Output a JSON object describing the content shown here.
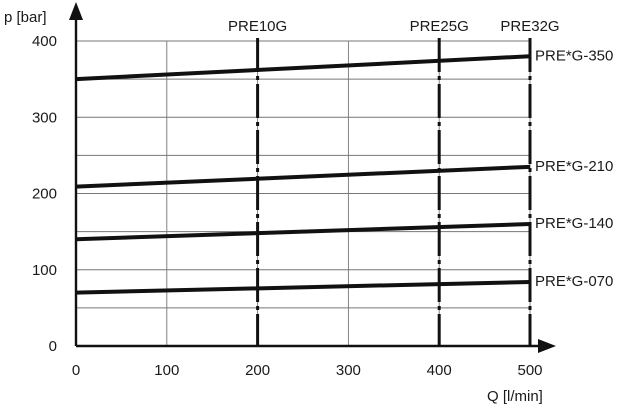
{
  "chart_data": {
    "type": "line",
    "x_axis": {
      "label": "Q [l/min]",
      "range": [
        0,
        500
      ],
      "ticks": [
        "0",
        "100",
        "200",
        "300",
        "400",
        "500"
      ]
    },
    "y_axis": {
      "label": "p [bar]",
      "range": [
        0,
        400
      ],
      "ticks": [
        "0",
        "100",
        "200",
        "300",
        "400"
      ]
    },
    "grid": true,
    "x_grid_values": [
      0,
      100,
      200,
      300,
      400,
      500
    ],
    "y_grid_values": [
      0,
      50,
      100,
      150,
      200,
      250,
      300,
      350,
      400
    ],
    "series": [
      {
        "name": "PRE*G-350",
        "x": [
          0,
          500
        ],
        "y": [
          350,
          380
        ]
      },
      {
        "name": "PRE*G-210",
        "x": [
          0,
          500
        ],
        "y": [
          209,
          235
        ]
      },
      {
        "name": "PRE*G-140",
        "x": [
          0,
          500
        ],
        "y": [
          140,
          160
        ]
      },
      {
        "name": "PRE*G-070",
        "x": [
          0,
          500
        ],
        "y": [
          70,
          84
        ]
      }
    ],
    "vertical_markers": [
      {
        "label": "PRE10G",
        "x": 200
      },
      {
        "label": "PRE25G",
        "x": 400
      },
      {
        "label": "PRE32G",
        "x": 500
      }
    ]
  }
}
